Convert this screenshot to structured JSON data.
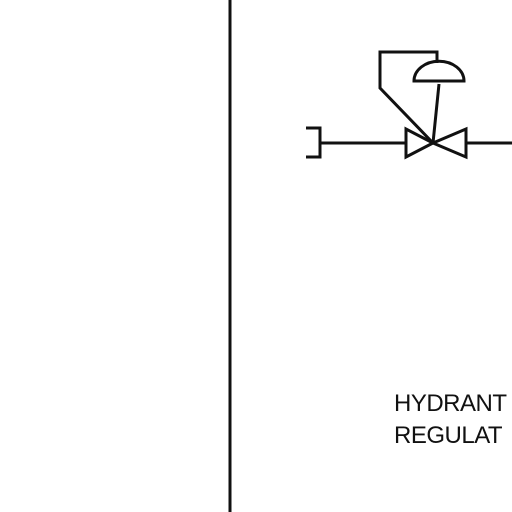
{
  "symbol": {
    "name": "pressure-regulating-valve",
    "line_color": "#111111",
    "fill_color": "#ffffff"
  },
  "caption": {
    "line1": "HYDRANT",
    "line2": "REGULAT"
  }
}
